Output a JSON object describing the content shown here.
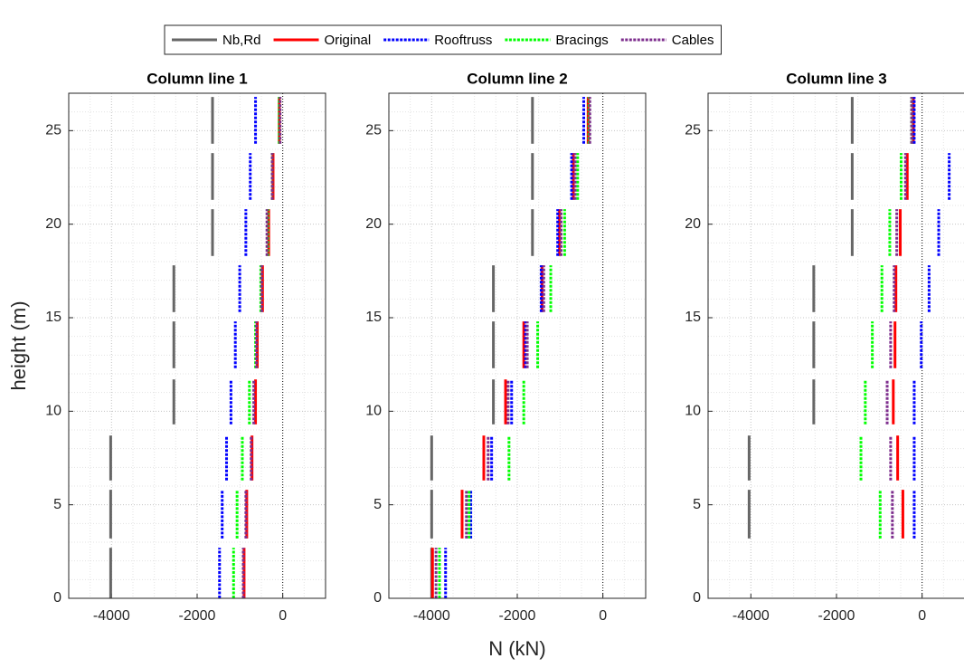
{
  "chart_data": [
    {
      "type": "segments",
      "title": "Column line 1",
      "ylabel": "height (m)",
      "xlim": [
        -5000,
        1000
      ],
      "xticks": [
        -4000,
        -2000,
        0
      ],
      "ylim": [
        0,
        27
      ],
      "yticks": [
        0,
        5,
        10,
        15,
        20,
        25
      ],
      "grid": true,
      "y_ranges": [
        [
          0,
          2.7
        ],
        [
          3.2,
          5.8
        ],
        [
          6.3,
          8.7
        ],
        [
          9.3,
          11.7
        ],
        [
          12.3,
          14.8
        ],
        [
          15.3,
          17.8
        ],
        [
          18.3,
          20.8
        ],
        [
          21.3,
          23.8
        ],
        [
          24.3,
          26.8
        ]
      ],
      "series": [
        {
          "name": "Nb,Rd",
          "color": "#666666",
          "style": "solid",
          "values": [
            -4020,
            -4020,
            -4020,
            -2544,
            -2544,
            -2544,
            -1641,
            -1641,
            -1641
          ]
        },
        {
          "name": "Original",
          "color": "#ff0000",
          "style": "solid",
          "values": [
            -903,
            -841,
            -718,
            -636,
            -595,
            -472,
            -328,
            -226,
            -82
          ]
        },
        {
          "name": "Rooftruss",
          "color": "#0000ff",
          "style": "dashed",
          "values": [
            -1477,
            -1415,
            -1313,
            -1210,
            -1108,
            -1005,
            -862,
            -759,
            -636
          ]
        },
        {
          "name": "Bracings",
          "color": "#00ff00",
          "style": "dashed",
          "values": [
            -1149,
            -1067,
            -944,
            -779,
            -636,
            -513,
            -349,
            -246,
            -82
          ]
        },
        {
          "name": "Cables",
          "color": "#7e2f8e",
          "style": "dashed",
          "values": [
            -923,
            -862,
            -738,
            -677,
            -615,
            -492,
            -369,
            -246,
            -62
          ]
        }
      ]
    },
    {
      "type": "segments",
      "title": "Column line 2",
      "xlabel": "N (kN)",
      "xlim": [
        -5000,
        1000
      ],
      "xticks": [
        -4000,
        -2000,
        0
      ],
      "ylim": [
        0,
        27
      ],
      "yticks": [
        0,
        5,
        10,
        15,
        20,
        25
      ],
      "grid": true,
      "y_ranges": [
        [
          0,
          2.7
        ],
        [
          3.2,
          5.8
        ],
        [
          6.3,
          8.7
        ],
        [
          9.3,
          11.7
        ],
        [
          12.3,
          14.8
        ],
        [
          15.3,
          17.8
        ],
        [
          18.3,
          20.8
        ],
        [
          21.3,
          23.8
        ],
        [
          24.3,
          26.8
        ]
      ],
      "series": [
        {
          "name": "Nb,Rd",
          "color": "#666666",
          "style": "solid",
          "values": [
            -4000,
            -4000,
            -4000,
            -2558,
            -2558,
            -2558,
            -1645,
            -1645,
            -1645
          ]
        },
        {
          "name": "Original",
          "color": "#ff0000",
          "style": "solid",
          "values": [
            -3980,
            -3289,
            -2782,
            -2274,
            -1848,
            -1421,
            -1015,
            -690,
            -345
          ]
        },
        {
          "name": "Rooftruss",
          "color": "#0000ff",
          "style": "dashed",
          "values": [
            -3675,
            -3086,
            -2599,
            -2132,
            -1807,
            -1442,
            -1056,
            -731,
            -447
          ]
        },
        {
          "name": "Bracings",
          "color": "#00ff00",
          "style": "dashed",
          "values": [
            -3817,
            -3127,
            -2193,
            -1848,
            -1523,
            -1218,
            -893,
            -589,
            -325
          ]
        },
        {
          "name": "Cables",
          "color": "#7e2f8e",
          "style": "dashed",
          "values": [
            -3898,
            -3188,
            -2680,
            -2213,
            -1766,
            -1381,
            -975,
            -650,
            -305
          ]
        }
      ]
    },
    {
      "type": "segments",
      "title": "Column line 3",
      "xlim": [
        -5000,
        1000
      ],
      "xticks": [
        -4000,
        -2000,
        0
      ],
      "ylim": [
        0,
        27
      ],
      "yticks": [
        0,
        5,
        10,
        15,
        20,
        25
      ],
      "grid": true,
      "y_ranges": [
        [
          0,
          2.7
        ],
        [
          3.2,
          5.8
        ],
        [
          6.3,
          8.7
        ],
        [
          9.3,
          11.7
        ],
        [
          12.3,
          14.8
        ],
        [
          15.3,
          17.8
        ],
        [
          18.3,
          20.8
        ],
        [
          21.3,
          23.8
        ],
        [
          24.3,
          26.8
        ]
      ],
      "series": [
        {
          "name": "Nb,Rd",
          "color": "#666666",
          "style": "solid",
          "values": [
            null,
            -4041,
            -4041,
            -2531,
            -2531,
            -2531,
            -1633,
            -1633,
            -1633
          ]
        },
        {
          "name": "Original",
          "color": "#ff0000",
          "style": "solid",
          "values": [
            null,
            -449,
            -571,
            -673,
            -633,
            -612,
            -510,
            -347,
            -204
          ]
        },
        {
          "name": "Rooftruss",
          "color": "#0000ff",
          "style": "dashed",
          "values": [
            null,
            -184,
            -184,
            -184,
            -20,
            163,
            388,
            633,
            -184
          ]
        },
        {
          "name": "Bracings",
          "color": "#00ff00",
          "style": "dashed",
          "values": [
            null,
            -980,
            -1429,
            -1327,
            -1163,
            -939,
            -755,
            -490,
            -245
          ]
        },
        {
          "name": "Cables",
          "color": "#7e2f8e",
          "style": "dashed",
          "values": [
            null,
            -694,
            -735,
            -816,
            -735,
            -653,
            -592,
            -388,
            -245
          ]
        }
      ]
    }
  ]
}
